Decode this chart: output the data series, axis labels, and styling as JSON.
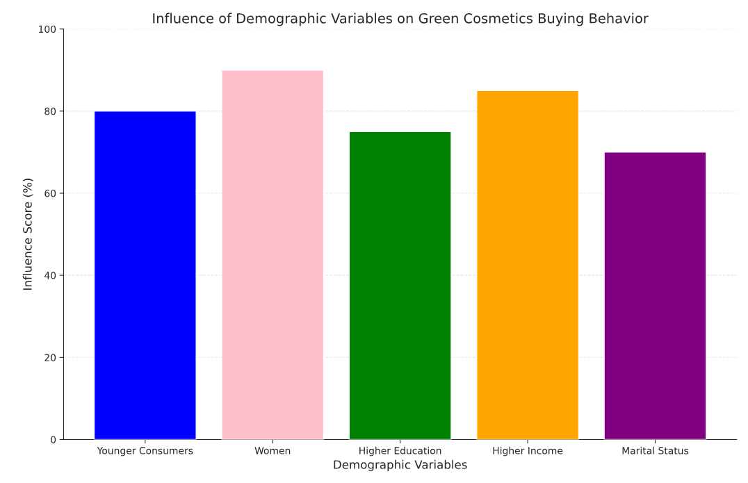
{
  "chart_data": {
    "type": "bar",
    "title": "Influence of Demographic Variables on Green Cosmetics Buying Behavior",
    "xlabel": "Demographic Variables",
    "ylabel": "Influence Score (%)",
    "categories": [
      "Younger Consumers",
      "Women",
      "Higher Education",
      "Higher Income",
      "Marital Status"
    ],
    "values": [
      80,
      90,
      75,
      85,
      70
    ],
    "colors": [
      "#0000ff",
      "#ffc0cb",
      "#008000",
      "#ffa500",
      "#800080"
    ],
    "ylim": [
      0,
      100
    ],
    "yticks": [
      0,
      20,
      40,
      60,
      80,
      100
    ],
    "grid": "y"
  }
}
